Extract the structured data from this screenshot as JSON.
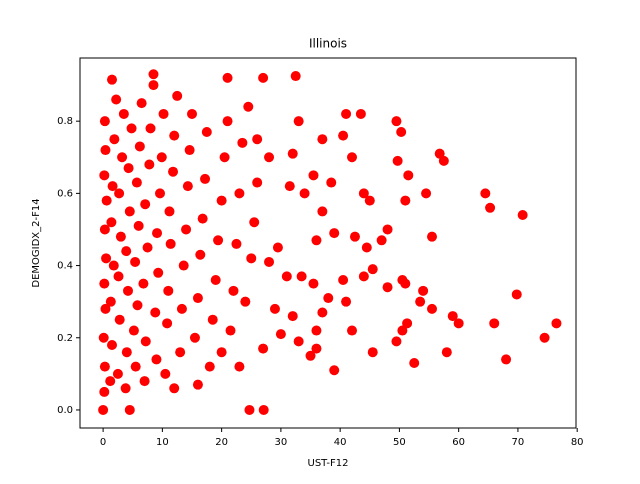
{
  "chart_data": {
    "type": "scatter",
    "title": "Illinois",
    "x_label": "UST-F12",
    "y_label": "DEMOGIDX_2-F14",
    "color": "#ff0000",
    "xlim": [
      -3.9,
      79.8
    ],
    "ylim": [
      -0.05,
      0.975
    ],
    "xticks": [
      0,
      10,
      20,
      30,
      40,
      50,
      60,
      70,
      80
    ],
    "yticks": [
      {
        "value": 0,
        "label": "0.0"
      },
      0.2,
      0.4,
      0.6,
      0.8
    ],
    "x": [
      0,
      4.5,
      24.7,
      27.1,
      32.5,
      27,
      21,
      8.5,
      1.5,
      41,
      43.5,
      49.5,
      50.3,
      56.8,
      57.5,
      40.5,
      42,
      49.7,
      51.5,
      54.5,
      64.5,
      65.3,
      70.8,
      51,
      45,
      44,
      38.5,
      35.5,
      34,
      37,
      39,
      42.5,
      47,
      48,
      55.5,
      44.5,
      40.5,
      44,
      45.5,
      48,
      50.5,
      51,
      53.5,
      54,
      55.5,
      59,
      60,
      66,
      69.8,
      76.5,
      74.5,
      68,
      58,
      52.5,
      49.5,
      50.5,
      51.3,
      45.5,
      42,
      41,
      39,
      36,
      35,
      33,
      36,
      37,
      38,
      33.5,
      31,
      32,
      29,
      28,
      30,
      29.5,
      35.5,
      36,
      37,
      33,
      31.5,
      32,
      28,
      26,
      0.2,
      0.3,
      0.1,
      0.4,
      0.2,
      0.5,
      0.3,
      0.6,
      0.2,
      0.4,
      0.3,
      1.2,
      1.5,
      1.3,
      1.8,
      1.4,
      1.6,
      1.9,
      2.2,
      2.5,
      2.8,
      2.6,
      3,
      2.7,
      3.2,
      3.5,
      3.8,
      4,
      4.2,
      3.9,
      4.5,
      4.3,
      4.8,
      5.5,
      5.2,
      5.8,
      5.4,
      6,
      5.7,
      6.2,
      6.5,
      7,
      7.2,
      6.8,
      7.5,
      7.1,
      7.8,
      8,
      8.5,
      9,
      8.8,
      9.3,
      9.1,
      9.6,
      9.9,
      10.2,
      10.5,
      10.8,
      11,
      11.4,
      11.2,
      11.8,
      12,
      12.5,
      13,
      13.3,
      13.6,
      14,
      14.3,
      14.6,
      15,
      15.5,
      16,
      16.4,
      16.8,
      17.2,
      17.5,
      18,
      18.5,
      19,
      19.4,
      20,
      20.5,
      21,
      21.5,
      22,
      22.5,
      23,
      23.5,
      24,
      25,
      25.5,
      26,
      24.5,
      12,
      16,
      20,
      23,
      27
    ],
    "values": [
      0,
      0,
      0,
      0,
      0.925,
      0.92,
      0.92,
      0.93,
      0.915,
      0.82,
      0.82,
      0.8,
      0.77,
      0.71,
      0.69,
      0.76,
      0.7,
      0.69,
      0.65,
      0.6,
      0.6,
      0.56,
      0.54,
      0.58,
      0.58,
      0.6,
      0.63,
      0.65,
      0.6,
      0.55,
      0.49,
      0.48,
      0.47,
      0.5,
      0.48,
      0.45,
      0.36,
      0.37,
      0.39,
      0.34,
      0.36,
      0.35,
      0.3,
      0.33,
      0.28,
      0.26,
      0.24,
      0.24,
      0.32,
      0.24,
      0.2,
      0.14,
      0.16,
      0.13,
      0.19,
      0.22,
      0.24,
      0.16,
      0.22,
      0.3,
      0.11,
      0.17,
      0.15,
      0.19,
      0.22,
      0.27,
      0.31,
      0.37,
      0.37,
      0.26,
      0.28,
      0.41,
      0.21,
      0.45,
      0.35,
      0.47,
      0.75,
      0.8,
      0.62,
      0.71,
      0.7,
      0.75,
      0.05,
      0.12,
      0.2,
      0.28,
      0.35,
      0.42,
      0.5,
      0.58,
      0.65,
      0.72,
      0.8,
      0.08,
      0.18,
      0.3,
      0.4,
      0.52,
      0.62,
      0.75,
      0.86,
      0.1,
      0.25,
      0.37,
      0.48,
      0.6,
      0.7,
      0.82,
      0.06,
      0.16,
      0.33,
      0.44,
      0.55,
      0.67,
      0.78,
      0.12,
      0.22,
      0.29,
      0.41,
      0.51,
      0.63,
      0.73,
      0.85,
      0.08,
      0.19,
      0.35,
      0.45,
      0.57,
      0.68,
      0.78,
      0.9,
      0.14,
      0.27,
      0.38,
      0.49,
      0.6,
      0.7,
      0.82,
      0.1,
      0.24,
      0.33,
      0.46,
      0.55,
      0.66,
      0.76,
      0.87,
      0.16,
      0.28,
      0.4,
      0.5,
      0.62,
      0.72,
      0.82,
      0.2,
      0.31,
      0.43,
      0.53,
      0.64,
      0.77,
      0.12,
      0.25,
      0.36,
      0.47,
      0.58,
      0.7,
      0.8,
      0.22,
      0.33,
      0.46,
      0.6,
      0.74,
      0.3,
      0.42,
      0.52,
      0.63,
      0.84,
      0.06,
      0.07,
      0.16,
      0.12,
      0.17
    ]
  }
}
